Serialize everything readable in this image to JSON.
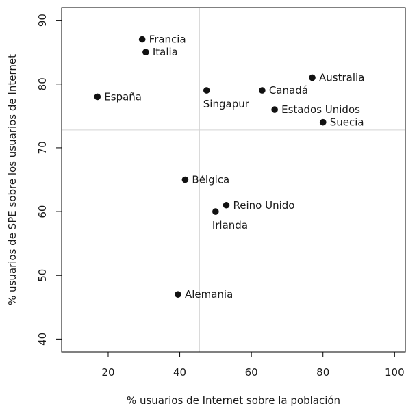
{
  "chart_data": {
    "type": "scatter",
    "title": "",
    "xlabel": "% usuarios de Internet sobre la población",
    "ylabel": "% usuarios de SPE sobre los usuarios de Internet",
    "xlim": [
      7,
      103
    ],
    "ylim": [
      38,
      92
    ],
    "xticks": [
      20,
      40,
      60,
      80,
      100
    ],
    "yticks": [
      40,
      50,
      60,
      70,
      80,
      90
    ],
    "grid": false,
    "reference_lines": {
      "vertical_x": 45.5,
      "horizontal_y": 72.8,
      "color": "#d3d3d3"
    },
    "points": [
      {
        "label": "Francia",
        "x": 29.5,
        "y": 87,
        "label_pos": "right"
      },
      {
        "label": "Italia",
        "x": 30.5,
        "y": 85,
        "label_pos": "right"
      },
      {
        "label": "España",
        "x": 17,
        "y": 78,
        "label_pos": "right"
      },
      {
        "label": "Singapur",
        "x": 47.5,
        "y": 79,
        "label_pos": "below"
      },
      {
        "label": "Canadá",
        "x": 63,
        "y": 79,
        "label_pos": "right"
      },
      {
        "label": "Australia",
        "x": 77,
        "y": 81,
        "label_pos": "right"
      },
      {
        "label": "Estados Unidos",
        "x": 66.5,
        "y": 76,
        "label_pos": "right"
      },
      {
        "label": "Suecia",
        "x": 80,
        "y": 74,
        "label_pos": "right"
      },
      {
        "label": "Bélgica",
        "x": 41.5,
        "y": 65,
        "label_pos": "right"
      },
      {
        "label": "Reino Unido",
        "x": 53,
        "y": 61,
        "label_pos": "right"
      },
      {
        "label": "Irlanda",
        "x": 50,
        "y": 60,
        "label_pos": "below"
      },
      {
        "label": "Alemania",
        "x": 39.5,
        "y": 47,
        "label_pos": "right"
      }
    ],
    "point_color": "#111111"
  }
}
